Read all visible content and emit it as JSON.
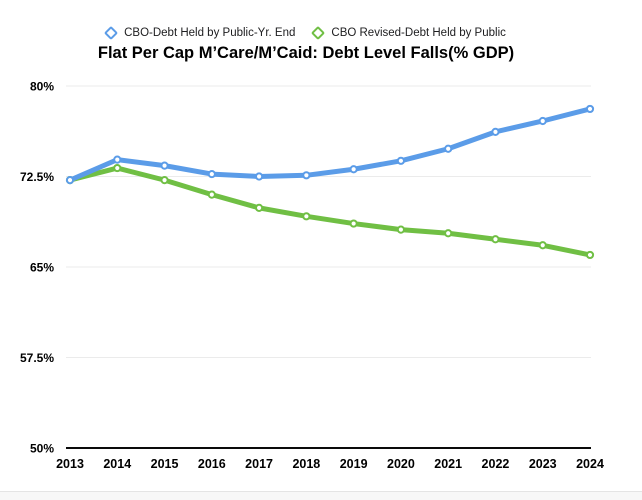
{
  "title": "Flat Per Cap M’Care/M’Caid: Debt Level Falls(% GDP)",
  "legend": {
    "items": [
      {
        "label": "CBO-Debt Held by Public-Yr. End",
        "color": "#5b9ce8"
      },
      {
        "label": "CBO Revised-Debt Held by Public",
        "color": "#70bf44"
      }
    ]
  },
  "chart_data": {
    "type": "line",
    "title": "Flat Per Cap M’Care/M’Caid: Debt Level Falls(% GDP)",
    "categories": [
      "2013",
      "2014",
      "2015",
      "2016",
      "2017",
      "2018",
      "2019",
      "2020",
      "2021",
      "2022",
      "2023",
      "2024"
    ],
    "series": [
      {
        "name": "CBO-Debt Held by Public-Yr. End",
        "key": "cbo-baseline",
        "color": "#5b9ce8",
        "values": [
          72.2,
          73.9,
          73.4,
          72.7,
          72.5,
          72.6,
          73.1,
          73.8,
          74.8,
          76.2,
          77.1,
          78.1
        ]
      },
      {
        "name": "CBO Revised-Debt Held by Public",
        "key": "cbo-revised",
        "color": "#70bf44",
        "values": [
          72.2,
          73.2,
          72.2,
          71.0,
          69.9,
          69.2,
          68.6,
          68.1,
          67.8,
          67.3,
          66.8,
          66.0
        ]
      }
    ],
    "xlabel": "",
    "ylabel": "",
    "ylim": [
      50,
      80
    ],
    "yticks": [
      {
        "value": 80,
        "label": "80%"
      },
      {
        "value": 72.5,
        "label": "72.5%"
      },
      {
        "value": 65,
        "label": "65%"
      },
      {
        "value": 57.5,
        "label": "57.5%"
      },
      {
        "value": 50,
        "label": "50%"
      }
    ],
    "grid": true,
    "legend_position": "top",
    "colors": {
      "gridline": "#ebebeb",
      "axis": "#0a0a0a",
      "marker_fill": "#ffffff"
    }
  }
}
